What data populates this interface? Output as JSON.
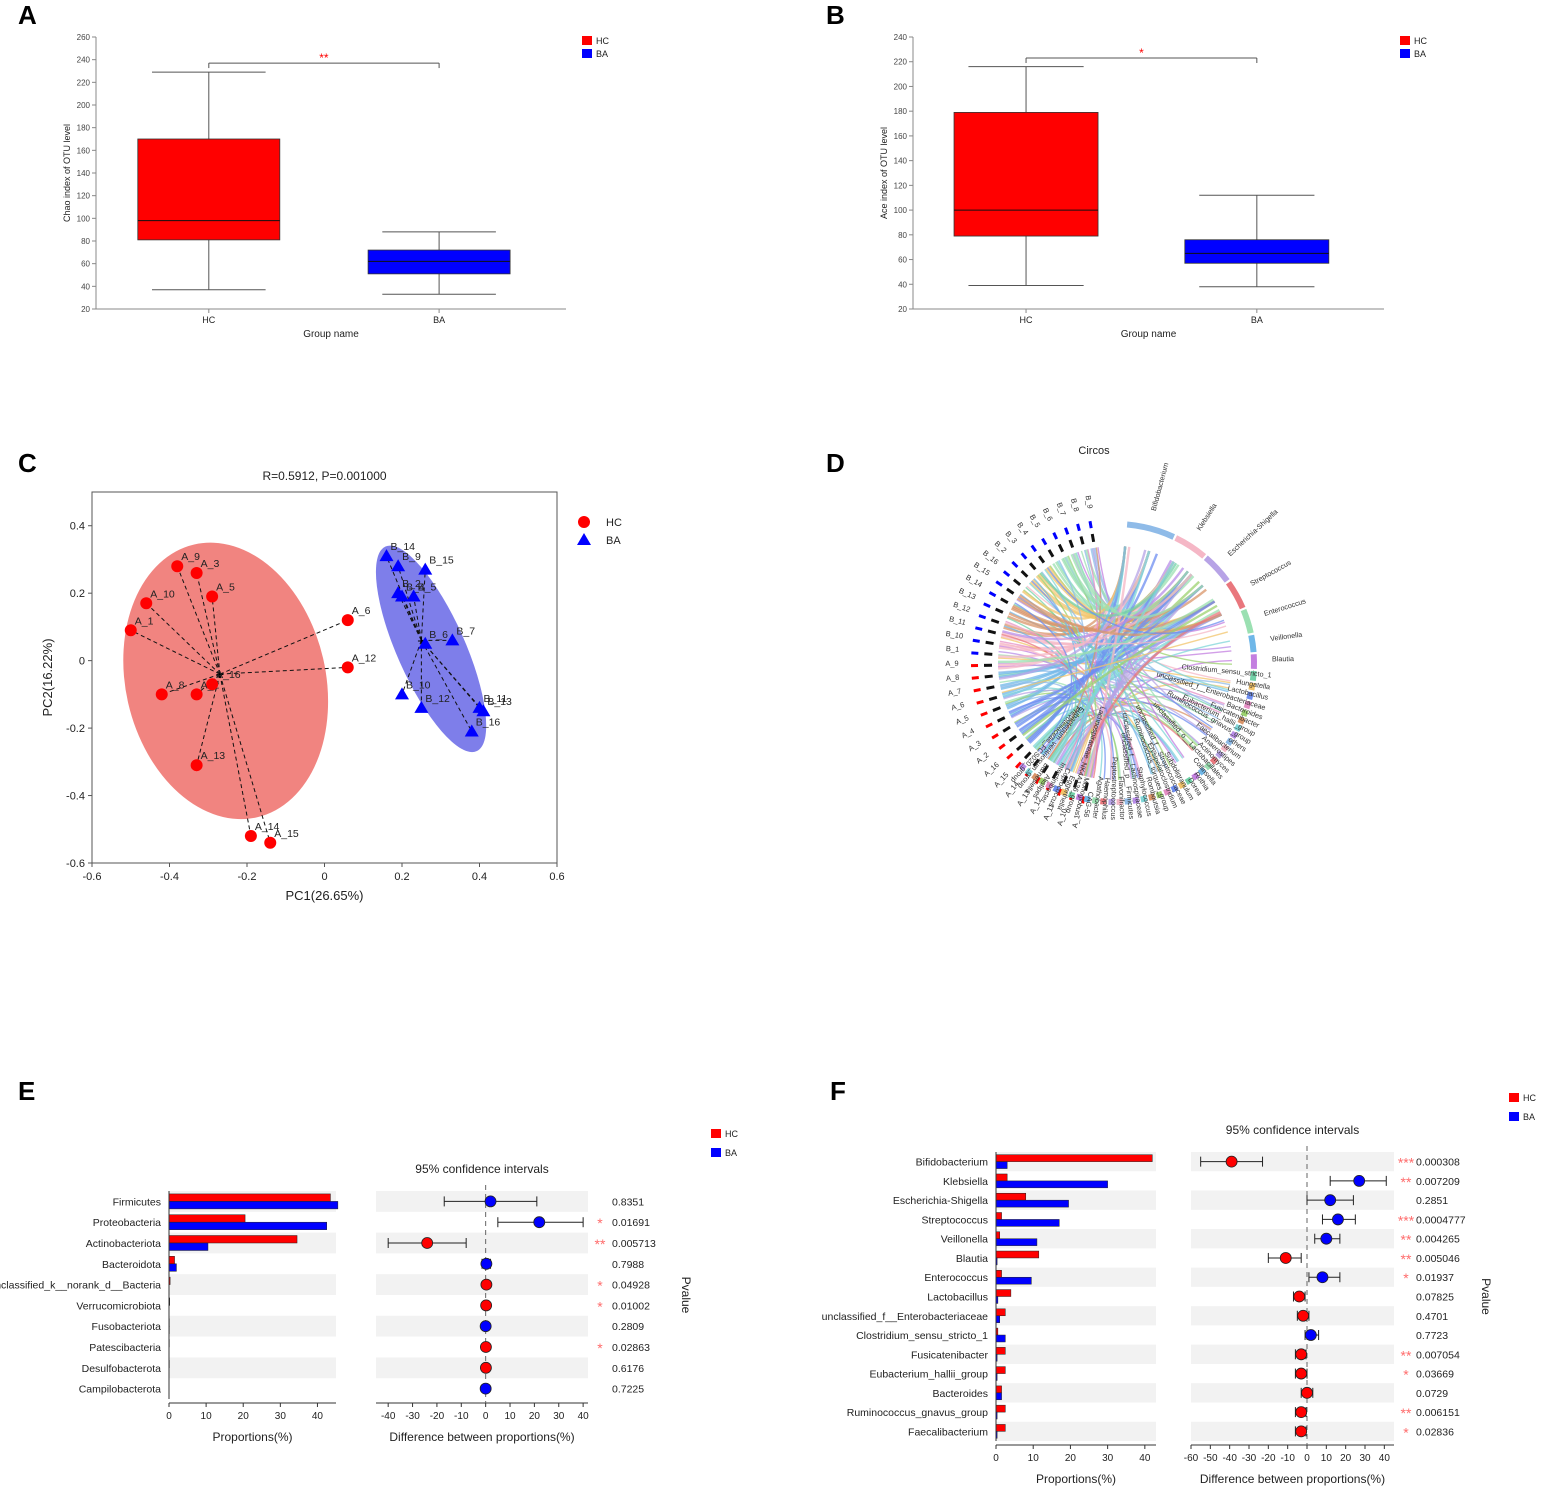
{
  "colors": {
    "hc": "#ff0000",
    "ba": "#0000ff",
    "hc_soft": "#f07a75",
    "ba_soft": "#7070e8",
    "sig": "#ff6b6b",
    "stripe": "#f2f2f2"
  },
  "legend": {
    "hc": "HC",
    "ba": "BA"
  },
  "chart_data": [
    {
      "id": "A",
      "type": "box",
      "panel_label": "A",
      "xlabel": "Group name",
      "ylabel": "Chao index of OTU level",
      "ylim": [
        20,
        260
      ],
      "yticks": [
        20,
        40,
        60,
        80,
        100,
        120,
        140,
        160,
        180,
        200,
        220,
        240,
        260
      ],
      "categories": [
        "HC",
        "BA"
      ],
      "boxes": [
        {
          "name": "HC",
          "min": 37,
          "q1": 81,
          "median": 98,
          "q3": 170,
          "max": 229
        },
        {
          "name": "BA",
          "min": 33,
          "q1": 51,
          "median": 62,
          "q3": 72,
          "max": 88
        }
      ],
      "significance": "**",
      "bracket_y": 237
    },
    {
      "id": "B",
      "type": "box",
      "panel_label": "B",
      "xlabel": "Group name",
      "ylabel": "Ace index of OTU level",
      "ylim": [
        20,
        240
      ],
      "yticks": [
        20,
        40,
        60,
        80,
        100,
        120,
        140,
        160,
        180,
        200,
        220,
        240
      ],
      "categories": [
        "HC",
        "BA"
      ],
      "boxes": [
        {
          "name": "HC",
          "min": 39,
          "q1": 79,
          "median": 100,
          "q3": 179,
          "max": 216
        },
        {
          "name": "BA",
          "min": 38,
          "q1": 57,
          "median": 65,
          "q3": 76,
          "max": 112
        }
      ],
      "significance": "*",
      "bracket_y": 223
    },
    {
      "id": "C",
      "type": "scatter",
      "panel_label": "C",
      "title": "R=0.5912, P=0.001000",
      "xlabel": "PC1(26.65%)",
      "ylabel": "PC2(16.22%)",
      "xlim": [
        -0.6,
        0.6
      ],
      "ylim": [
        -0.6,
        0.5
      ],
      "xticks": [
        -0.6,
        -0.4,
        -0.2,
        0,
        0.2,
        0.4,
        0.6
      ],
      "xtick_labels": [
        "-0.6",
        "-0.4",
        "-0.2",
        "0",
        "0.2",
        "0.4",
        "0.6"
      ],
      "yticks": [
        -0.6,
        -0.4,
        -0.2,
        0,
        0.2,
        0.4
      ],
      "ytick_labels": [
        "-0.6",
        "-0.4",
        "-0.2",
        "0",
        "0.2",
        "0.4"
      ],
      "centroids": {
        "HC": [
          -0.27,
          -0.04
        ],
        "BA": [
          0.25,
          0.06
        ]
      },
      "series": [
        {
          "name": "HC",
          "marker": "circle",
          "points": [
            {
              "label": "A_9",
              "x": -0.38,
              "y": 0.28
            },
            {
              "label": "A_3",
              "x": -0.33,
              "y": 0.26
            },
            {
              "label": "A_5",
              "x": -0.29,
              "y": 0.19
            },
            {
              "label": "A_10",
              "x": -0.46,
              "y": 0.17
            },
            {
              "label": "A_1",
              "x": -0.5,
              "y": 0.09
            },
            {
              "label": "A_8",
              "x": -0.42,
              "y": -0.1
            },
            {
              "label": "A_2",
              "x": -0.33,
              "y": -0.1
            },
            {
              "label": "A_16",
              "x": -0.29,
              "y": -0.07
            },
            {
              "label": "A_13",
              "x": -0.33,
              "y": -0.31
            },
            {
              "label": "A_6",
              "x": 0.06,
              "y": 0.12
            },
            {
              "label": "A_12",
              "x": 0.06,
              "y": -0.02
            },
            {
              "label": "A_14",
              "x": -0.19,
              "y": -0.52
            },
            {
              "label": "A_15",
              "x": -0.14,
              "y": -0.54
            }
          ]
        },
        {
          "name": "BA",
          "marker": "triangle",
          "points": [
            {
              "label": "B_14",
              "x": 0.16,
              "y": 0.31
            },
            {
              "label": "B_9",
              "x": 0.19,
              "y": 0.28
            },
            {
              "label": "B_15",
              "x": 0.26,
              "y": 0.27
            },
            {
              "label": "B_2",
              "x": 0.19,
              "y": 0.2
            },
            {
              "label": "B_4",
              "x": 0.2,
              "y": 0.19
            },
            {
              "label": "B_5",
              "x": 0.23,
              "y": 0.19
            },
            {
              "label": "B_6",
              "x": 0.26,
              "y": 0.05
            },
            {
              "label": "B_7",
              "x": 0.33,
              "y": 0.06
            },
            {
              "label": "B_10",
              "x": 0.2,
              "y": -0.1
            },
            {
              "label": "B_12",
              "x": 0.25,
              "y": -0.14
            },
            {
              "label": "B_11",
              "x": 0.4,
              "y": -0.14
            },
            {
              "label": "B_13",
              "x": 0.41,
              "y": -0.15
            },
            {
              "label": "B_16",
              "x": 0.38,
              "y": -0.21
            }
          ]
        }
      ]
    },
    {
      "id": "D",
      "type": "chord",
      "panel_label": "D",
      "title": "Circos",
      "samples": [
        "B_9",
        "B_8",
        "B_7",
        "B_6",
        "B_5",
        "B_4",
        "B_3",
        "B_2",
        "B_16",
        "B_15",
        "B_14",
        "B_13",
        "B_12",
        "B_11",
        "B_10",
        "B_1",
        "A_9",
        "A_8",
        "A_7",
        "A_6",
        "A_5",
        "A_4",
        "A_3",
        "A_2",
        "A_16",
        "A_15",
        "A_14",
        "A_13",
        "A_12",
        "A_11",
        "A_10",
        "A_1"
      ],
      "taxa": [
        "Bifidobacterium",
        "Klebsiella",
        "Escherichia-Shigella",
        "Streptococcus",
        "Enterococcus",
        "Veillonella",
        "Blautia",
        "Clostridium_sensu_stricto_1",
        "Hungatella",
        "Lactobacillus",
        "unclassified_f__Enterobacteriaceae",
        "Bacteroides",
        "Fusicatenibacter",
        "Eubacterium_hallii_group",
        "Ruminococcus_gnavus_group",
        "others",
        "Faecalibacterium",
        "Anaerostipes",
        "Actinomyces",
        "unclassified_o__Lactobacillales",
        "Collinsella",
        "Rothia",
        "Dorea",
        "Subdoligranulum",
        "unclassified_f__Streptococcaceae",
        "Erysipelatoclostridium",
        "Ruminococcus_torques_group",
        "Romboutsia",
        "Staphylococcus",
        "unclassified_f__Lachnospiraceae",
        "unclassified_p__Firmicutes",
        "Flavonifractor",
        "Peptostreptococcus",
        "Haemophilus",
        "Agathobacter",
        "CAG-56",
        "Monoglobus",
        "Lachnospiraceae_NK4A136_group",
        "Eggerthella",
        "Coprococcus",
        "Intestinibacter",
        "Alistipes",
        "Barnesiella",
        "Eubacterium_ventriosum_group",
        "Prevotellaceae_FCS020_group"
      ]
    },
    {
      "id": "E",
      "type": "extended_error_bar",
      "panel_label": "E",
      "prop_xlabel": "Proportions(%)",
      "diff_xlabel": "Difference between proportions(%)",
      "ci_title": "95% confidence intervals",
      "pvalue_label": "Pvalue",
      "prop_xlim": [
        0,
        45
      ],
      "prop_ticks": [
        0,
        10,
        20,
        30,
        40
      ],
      "diff_xlim": [
        -45,
        42
      ],
      "diff_ticks": [
        -40,
        -30,
        -20,
        -10,
        0,
        10,
        20,
        30,
        40
      ],
      "categories": [
        "Firmicutes",
        "Proteobacteria",
        "Actinobacteriota",
        "Bacteroidota",
        "unclassified_k__norank_d__Bacteria",
        "Verrucomicrobiota",
        "Fusobacteriota",
        "Patescibacteria",
        "Desulfobacterota",
        "Campilobacterota"
      ],
      "series": [
        {
          "name": "HC",
          "values": [
            43.5,
            20.5,
            34.5,
            1.5,
            0.3,
            0.2,
            0.1,
            0.1,
            0.1,
            0.05
          ]
        },
        {
          "name": "BA",
          "values": [
            45.5,
            42.5,
            10.5,
            2.0,
            0.0,
            0.0,
            0.1,
            0.0,
            0.0,
            0.05
          ]
        }
      ],
      "diff": [
        {
          "mean": 2,
          "lo": -17,
          "hi": 21,
          "winner": "BA"
        },
        {
          "mean": 22,
          "lo": 5,
          "hi": 40,
          "winner": "BA"
        },
        {
          "mean": -24,
          "lo": -40,
          "hi": -8,
          "winner": "HC"
        },
        {
          "mean": 0.3,
          "lo": -1.5,
          "hi": 2,
          "winner": "BA"
        },
        {
          "mean": 0.3,
          "lo": -0.5,
          "hi": 1,
          "winner": "HC"
        },
        {
          "mean": 0.2,
          "lo": -0.5,
          "hi": 0.8,
          "winner": "HC"
        },
        {
          "mean": 0,
          "lo": -0.5,
          "hi": 0.5,
          "winner": "BA"
        },
        {
          "mean": 0.1,
          "lo": -0.4,
          "hi": 0.6,
          "winner": "HC"
        },
        {
          "mean": 0.1,
          "lo": -0.4,
          "hi": 0.6,
          "winner": "HC"
        },
        {
          "mean": 0,
          "lo": -0.4,
          "hi": 0.4,
          "winner": "BA"
        }
      ],
      "pvalues": [
        "0.8351",
        "0.01691",
        "0.005713",
        "0.7988",
        "0.04928",
        "0.01002",
        "0.2809",
        "0.02863",
        "0.6176",
        "0.7225"
      ],
      "stars": [
        "",
        "*",
        "**",
        "",
        "*",
        "*",
        "",
        "*",
        "",
        ""
      ]
    },
    {
      "id": "F",
      "type": "extended_error_bar",
      "panel_label": "F",
      "prop_xlabel": "Proportions(%)",
      "diff_xlabel": "Difference between proportions(%)",
      "ci_title": "95% confidence intervals",
      "pvalue_label": "Pvalue",
      "prop_xlim": [
        0,
        43
      ],
      "prop_ticks": [
        0,
        10,
        20,
        30,
        40
      ],
      "diff_xlim": [
        -60,
        45
      ],
      "diff_ticks": [
        -60,
        -50,
        -40,
        -30,
        -20,
        -10,
        0,
        10,
        20,
        30,
        40
      ],
      "categories": [
        "Bifidobacterium",
        "Klebsiella",
        "Escherichia-Shigella",
        "Streptococcus",
        "Veillonella",
        "Blautia",
        "Enterococcus",
        "Lactobacillus",
        "unclassified_f__Enterobacteriaceae",
        "Clostridium_sensu_stricto_1",
        "Fusicatenibacter",
        "Eubacterium_hallii_group",
        "Bacteroides",
        "Ruminococcus_gnavus_group",
        "Faecalibacterium"
      ],
      "series": [
        {
          "name": "HC",
          "values": [
            42,
            3,
            8,
            1.5,
            1,
            11.5,
            1.5,
            4,
            2.5,
            0.5,
            2.5,
            2.5,
            1.5,
            2.5,
            2.5
          ]
        },
        {
          "name": "BA",
          "values": [
            3,
            30,
            19.5,
            17,
            11,
            0.3,
            9.5,
            0.5,
            1,
            2.5,
            0.3,
            0.3,
            1.5,
            0.3,
            0.3
          ]
        }
      ],
      "diff": [
        {
          "mean": -39,
          "lo": -55,
          "hi": -23,
          "winner": "HC"
        },
        {
          "mean": 27,
          "lo": 12,
          "hi": 41,
          "winner": "BA"
        },
        {
          "mean": 12,
          "lo": 0,
          "hi": 24,
          "winner": "BA"
        },
        {
          "mean": 16,
          "lo": 8,
          "hi": 25,
          "winner": "BA"
        },
        {
          "mean": 10,
          "lo": 4,
          "hi": 17,
          "winner": "BA"
        },
        {
          "mean": -11,
          "lo": -20,
          "hi": -3,
          "winner": "HC"
        },
        {
          "mean": 8,
          "lo": 1,
          "hi": 17,
          "winner": "BA"
        },
        {
          "mean": -4,
          "lo": -7,
          "hi": -1,
          "winner": "HC"
        },
        {
          "mean": -2,
          "lo": -5,
          "hi": 1,
          "winner": "HC"
        },
        {
          "mean": 2,
          "lo": -1,
          "hi": 6,
          "winner": "BA"
        },
        {
          "mean": -3,
          "lo": -6,
          "hi": -0.5,
          "winner": "HC"
        },
        {
          "mean": -3,
          "lo": -6,
          "hi": 0,
          "winner": "HC"
        },
        {
          "mean": 0,
          "lo": -3,
          "hi": 3,
          "winner": "HC"
        },
        {
          "mean": -3,
          "lo": -6,
          "hi": -0.5,
          "winner": "HC"
        },
        {
          "mean": -3,
          "lo": -6,
          "hi": -0.5,
          "winner": "HC"
        }
      ],
      "pvalues": [
        "0.000308",
        "0.007209",
        "0.2851",
        "0.0004777",
        "0.004265",
        "0.005046",
        "0.01937",
        "0.07825",
        "0.4701",
        "0.7723",
        "0.007054",
        "0.03669",
        "0.0729",
        "0.006151",
        "0.02836"
      ],
      "stars": [
        "***",
        "**",
        "",
        "***",
        "**",
        "**",
        "*",
        "",
        "",
        "",
        "**",
        "*",
        "",
        "**",
        "*"
      ]
    }
  ]
}
